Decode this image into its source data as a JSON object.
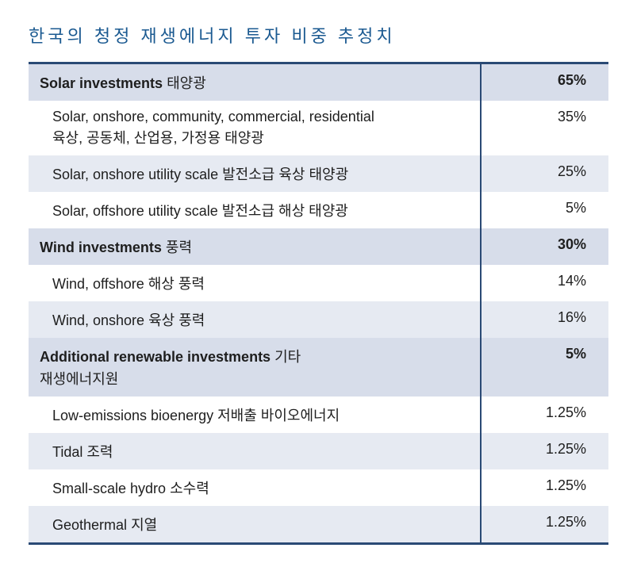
{
  "title": "한국의 청정 재생에너지 투자 비중 추정치",
  "colors": {
    "title_color": "#1b5a91",
    "border_color": "#2a4a75",
    "cat_row_bg": "#d7ddea",
    "alt_row_bg": "#e6eaf2",
    "text_color": "#1e1e1e",
    "background": "#ffffff"
  },
  "table": {
    "type": "table",
    "columns": [
      "label",
      "value"
    ],
    "rows": [
      {
        "type": "cat",
        "en": "Solar investments",
        "ko": "태양광",
        "value": "65%"
      },
      {
        "type": "sub",
        "en": "Solar, onshore, community, commercial, residential",
        "ko_line2": "육상, 공동체, 산업용, 가정용 태양광",
        "value": "35%",
        "alt": false
      },
      {
        "type": "sub",
        "en": "Solar, onshore utility scale",
        "ko": "발전소급 육상 태양광",
        "value": "25%",
        "alt": true
      },
      {
        "type": "sub",
        "en": "Solar, offshore utility scale",
        "ko": "발전소급 해상 태양광",
        "value": "5%",
        "alt": false
      },
      {
        "type": "cat",
        "en": "Wind investments",
        "ko": "풍력",
        "value": "30%"
      },
      {
        "type": "sub",
        "en": "Wind, offshore",
        "ko": "해상 풍력",
        "value": "14%",
        "alt": false
      },
      {
        "type": "sub",
        "en": "Wind, onshore",
        "ko": "육상 풍력",
        "value": "16%",
        "alt": true
      },
      {
        "type": "cat",
        "en": "Additional renewable investments",
        "ko": "기타",
        "ko_line2": "재생에너지원",
        "value": "5%"
      },
      {
        "type": "sub",
        "en": "Low-emissions bioenergy",
        "ko": "저배출 바이오에너지",
        "value": "1.25%",
        "alt": false
      },
      {
        "type": "sub",
        "en": "Tidal",
        "ko": "조력",
        "value": "1.25%",
        "alt": true
      },
      {
        "type": "sub",
        "en": "Small-scale hydro",
        "ko": "소수력",
        "value": "1.25%",
        "alt": false
      },
      {
        "type": "sub",
        "en": "Geothermal",
        "ko": "지열",
        "value": "1.25%",
        "alt": true
      }
    ]
  }
}
